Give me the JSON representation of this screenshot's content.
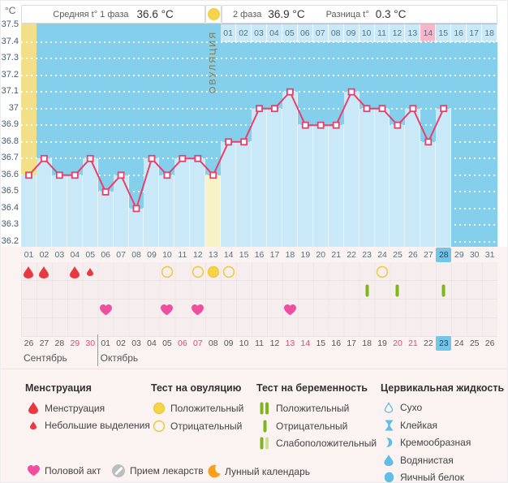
{
  "header": {
    "unit": "°C",
    "phase1_label": "Средняя t° 1 фаза",
    "phase1_value": "36.6 °C",
    "phase2_label": "2 фаза",
    "phase2_value": "36.9 °C",
    "diff_label": "Разница t°",
    "diff_value": "0.3 °C",
    "ovulation_label": "ОВУЛЯЦИЯ"
  },
  "chart_data": {
    "type": "line",
    "ylabel": "°C",
    "ylim": [
      36.2,
      37.5
    ],
    "yticks": [
      "37.5",
      "37.4",
      "37.3",
      "37.2",
      "37.1",
      "37",
      "36.9",
      "36.8",
      "36.7",
      "36.6",
      "36.5",
      "36.4",
      "36.3",
      "36.2"
    ],
    "cycle_days": [
      "01",
      "02",
      "03",
      "04",
      "05",
      "06",
      "07",
      "08",
      "09",
      "10",
      "11",
      "12",
      "13",
      "14",
      "15",
      "16",
      "17",
      "18",
      "19",
      "20",
      "21",
      "22",
      "23",
      "24",
      "25",
      "26",
      "27",
      "28",
      "29",
      "30",
      "31"
    ],
    "series": [
      {
        "name": "Базальная температура",
        "days": [
          1,
          2,
          3,
          4,
          5,
          6,
          7,
          8,
          9,
          10,
          11,
          12,
          13,
          14,
          15,
          16,
          17,
          18,
          19,
          20,
          21,
          22,
          23,
          24,
          25,
          26,
          27,
          28
        ],
        "values": [
          36.6,
          36.7,
          36.6,
          36.6,
          36.7,
          36.5,
          36.6,
          36.4,
          36.7,
          36.6,
          36.7,
          36.7,
          36.6,
          36.8,
          36.8,
          37.0,
          37.0,
          37.1,
          36.9,
          36.9,
          36.9,
          37.1,
          37.0,
          37.0,
          36.9,
          37.0,
          36.8,
          37.0
        ]
      }
    ],
    "coverline": 36.7,
    "ovulation_cycle_day": 13,
    "dpo_labels": [
      "01",
      "02",
      "03",
      "04",
      "05",
      "06",
      "07",
      "08",
      "09",
      "10",
      "11",
      "12",
      "13",
      "14",
      "15",
      "16",
      "17",
      "18"
    ],
    "highlighted_dpo_label": "14",
    "highlighted_cycle_day": 27,
    "current_cycle_day": 28,
    "moon_cycle_day": 30
  },
  "events": {
    "menstruation_days": [
      1,
      2,
      4
    ],
    "spotting_days": [
      5
    ],
    "ovulation_test_positive_days": [
      13
    ],
    "ovulation_test_negative_days": [
      10,
      12,
      14,
      24
    ],
    "pregnancy_test_negative_days": [
      23,
      25,
      28
    ],
    "intercourse_days": [
      6,
      10,
      12,
      18
    ]
  },
  "calendar": {
    "dates": [
      "26",
      "27",
      "28",
      "29",
      "30",
      "01",
      "02",
      "03",
      "04",
      "05",
      "06",
      "07",
      "08",
      "09",
      "10",
      "11",
      "12",
      "13",
      "14",
      "15",
      "16",
      "17",
      "18",
      "19",
      "20",
      "21",
      "22",
      "23",
      "24",
      "25",
      "26"
    ],
    "weekend_indices": [
      3,
      4,
      10,
      11,
      17,
      18,
      24,
      25
    ],
    "current_index": 27,
    "months": [
      {
        "label": "Сентябрь",
        "start_index": 0
      },
      {
        "label": "Октябрь",
        "start_index": 5
      }
    ]
  },
  "legend": {
    "columns": [
      {
        "title": "Менструация",
        "items": [
          {
            "icon": "drop-big",
            "label": "Менструация"
          },
          {
            "icon": "drop-small",
            "label": "Небольшие выделения"
          }
        ]
      },
      {
        "title": "Тест на овуляцию",
        "items": [
          {
            "icon": "circle-filled-yellow",
            "label": "Положительный"
          },
          {
            "icon": "circle-outline-yellow",
            "label": "Отрицательный"
          }
        ]
      },
      {
        "title": "Тест на беременность",
        "items": [
          {
            "icon": "bars-two",
            "label": "Положительный"
          },
          {
            "icon": "bar-one",
            "label": "Отрицательный"
          },
          {
            "icon": "bars-weak",
            "label": "Слабоположительный"
          }
        ]
      },
      {
        "title": "Цервикальная жидкость",
        "items": [
          {
            "icon": "cf-dry",
            "label": "Сухо"
          },
          {
            "icon": "cf-sticky",
            "label": "Клейкая"
          },
          {
            "icon": "cf-creamy",
            "label": "Кремообразная"
          },
          {
            "icon": "cf-watery",
            "label": "Водянистая"
          },
          {
            "icon": "cf-eggwhite",
            "label": "Яичный белок"
          }
        ]
      }
    ],
    "bottom_items": [
      {
        "icon": "heart",
        "label": "Половой акт"
      },
      {
        "icon": "medication",
        "label": "Прием лекарств"
      },
      {
        "icon": "moon",
        "label": "Лунный календарь"
      }
    ]
  },
  "colors": {
    "plot_bg": "#84CFEC",
    "bar_fill": "#C9E9F8",
    "ovulation_band": "#F1E089",
    "ovulation_bar": "#F9F2C6",
    "dpo_cell_bg": "#C9E9F8",
    "dpo_pink": "#F8B6C8",
    "line": "#E6406B",
    "coverline": "#F3EFA3",
    "highlight_blue": "#72C6E9",
    "menstruation": "#E9383F",
    "heart": "#F04FA0",
    "test_yellow": "#F6D44A",
    "test_yellow_border": "#EECB43",
    "preg_green": "#7FB71A",
    "preg_green_light": "#CBE093",
    "fluid_blue": "#5FBDE8",
    "moon": "#F6A01D",
    "weekend_red": "#E6486E",
    "date_text": "#555555",
    "axis_text": "#56707F",
    "medication": "#BDBDBD"
  }
}
